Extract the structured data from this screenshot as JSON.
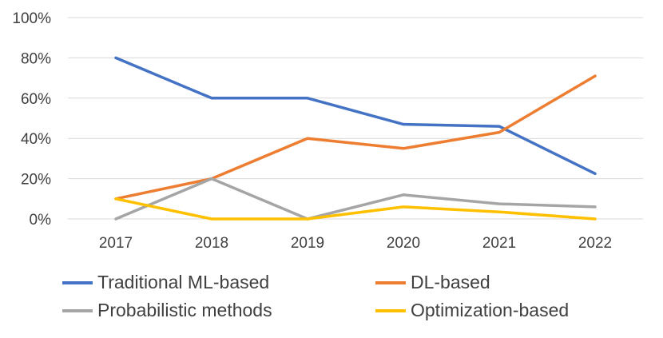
{
  "chart_data": {
    "type": "line",
    "title": "",
    "xlabel": "",
    "ylabel": "",
    "categories": [
      "2017",
      "2018",
      "2019",
      "2020",
      "2021",
      "2022"
    ],
    "y_ticks": [
      "0%",
      "20%",
      "40%",
      "60%",
      "80%",
      "100%"
    ],
    "ylim": [
      0,
      100
    ],
    "grid": true,
    "legend_position": "bottom",
    "series": [
      {
        "name": "Traditional ML-based",
        "color": "#4472C4",
        "values": [
          80,
          60,
          60,
          47,
          46,
          22.5
        ]
      },
      {
        "name": "DL-based",
        "color": "#ED7D31",
        "values": [
          10,
          20,
          40,
          35,
          43,
          71
        ]
      },
      {
        "name": "Probabilistic methods",
        "color": "#A5A5A5",
        "values": [
          0,
          20,
          0,
          12,
          7.5,
          6
        ]
      },
      {
        "name": "Optimization-based",
        "color": "#FFC000",
        "values": [
          10,
          0,
          0,
          6,
          3.5,
          0
        ]
      }
    ]
  }
}
